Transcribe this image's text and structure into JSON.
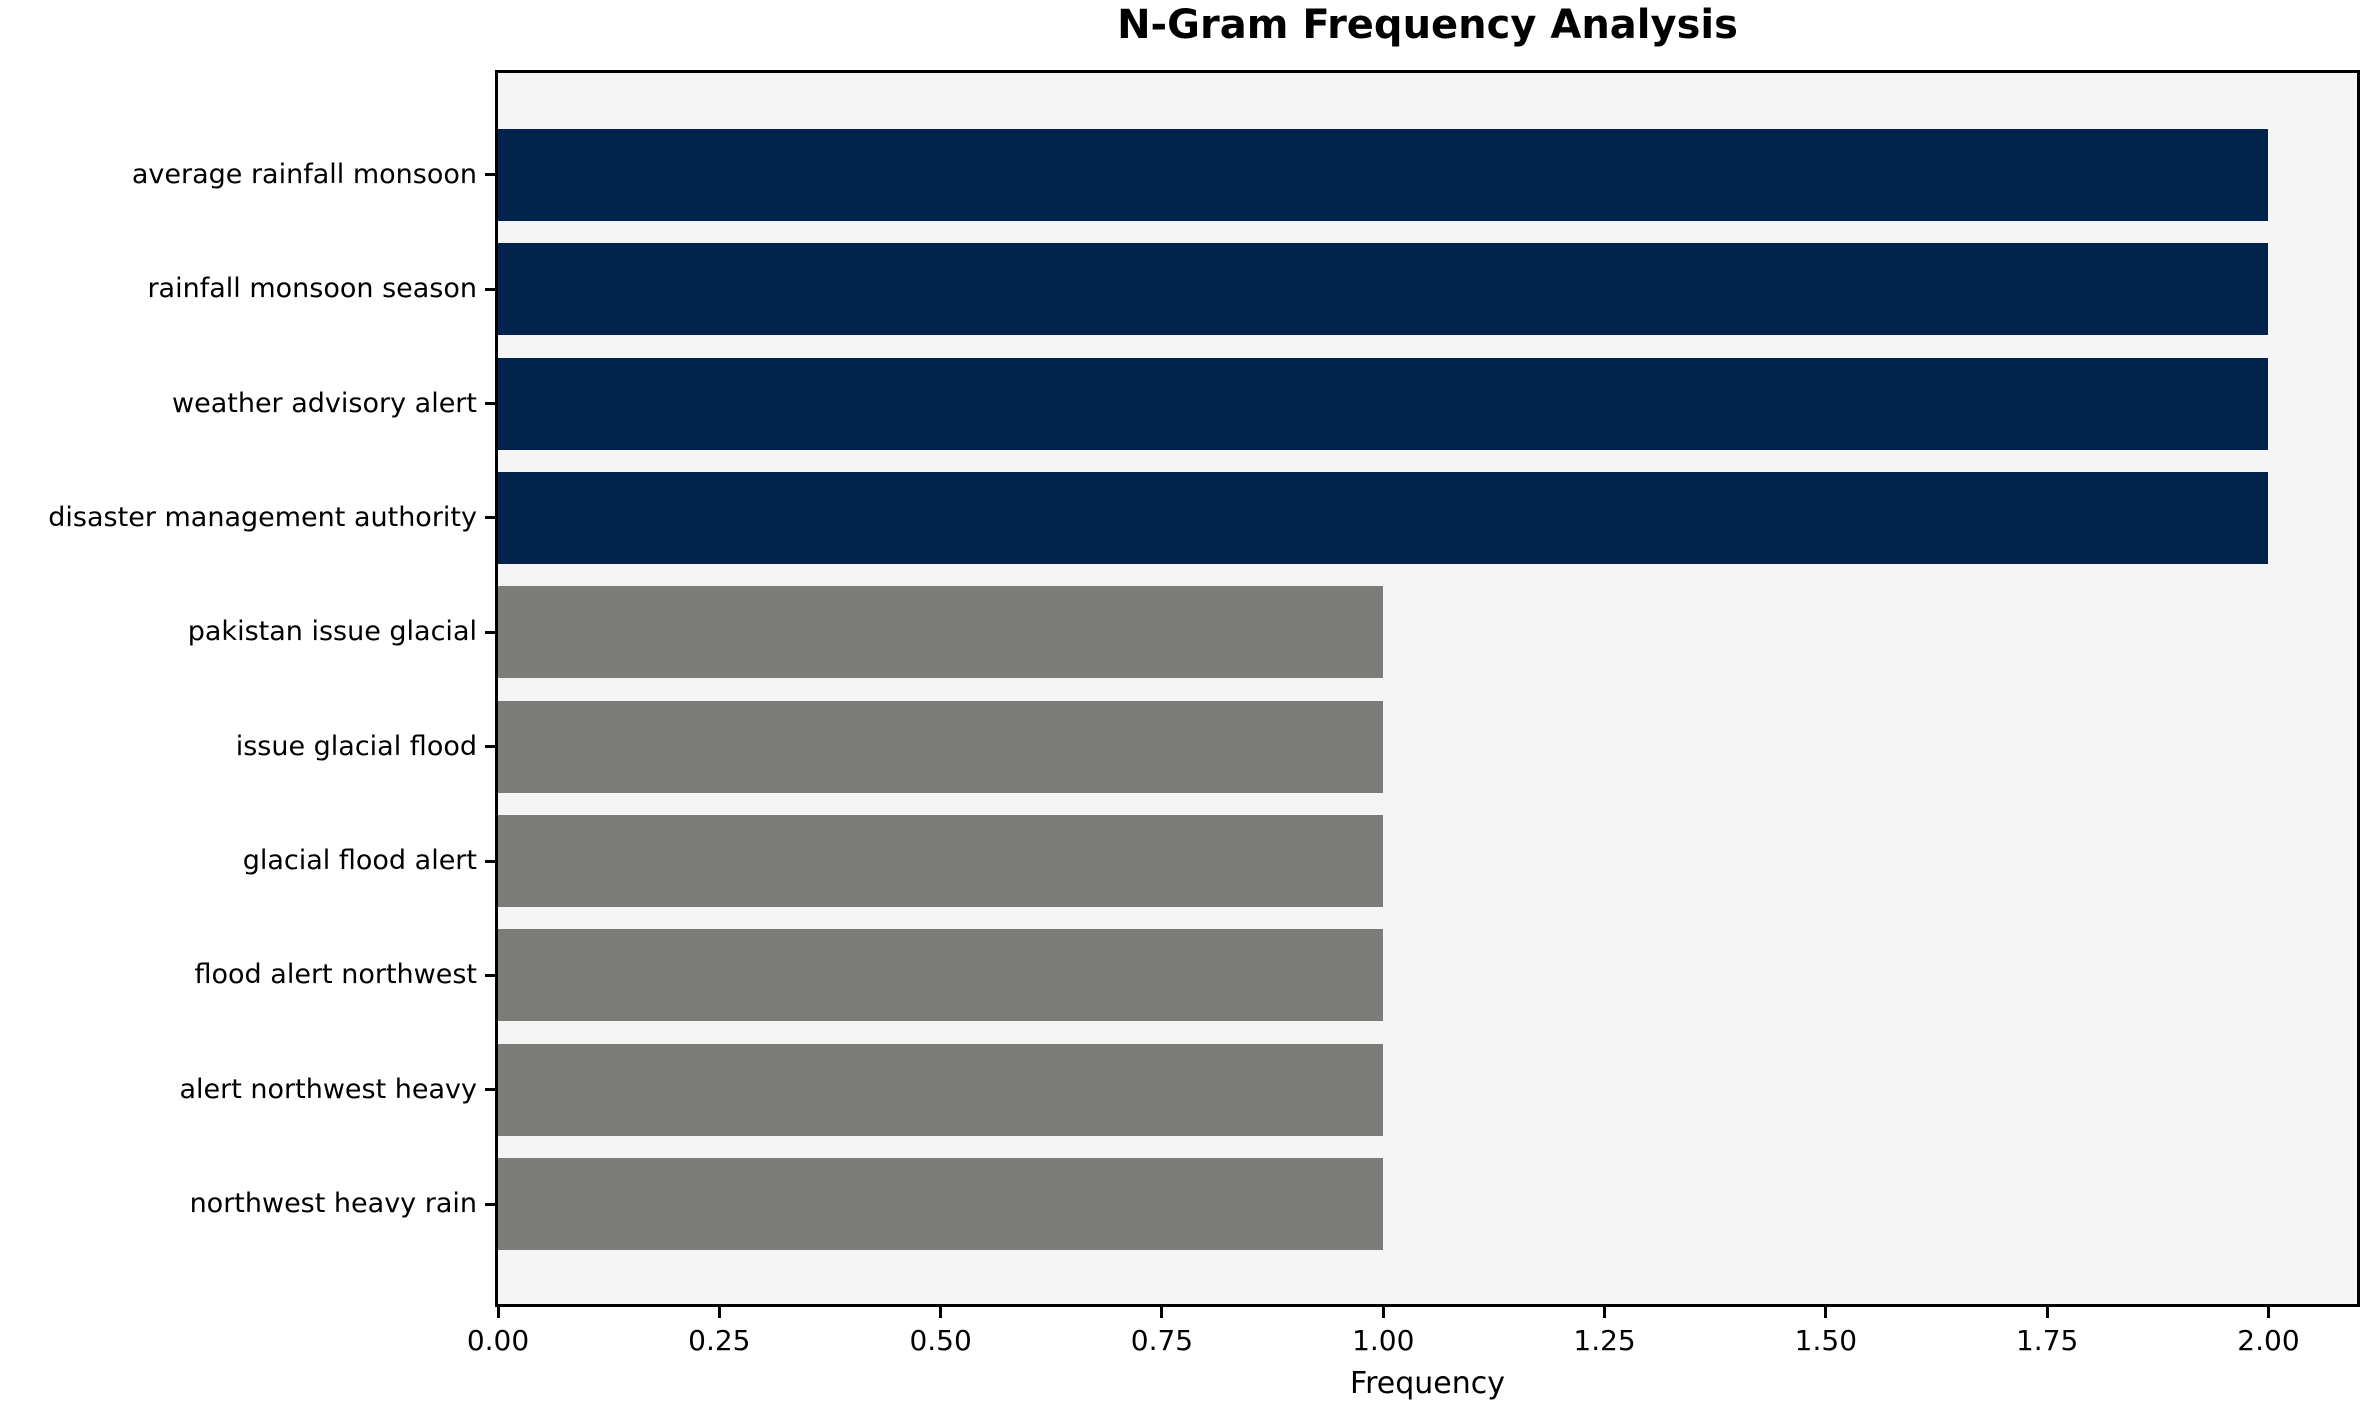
{
  "chart_data": {
    "type": "bar",
    "orientation": "horizontal",
    "title": "N-Gram Frequency Analysis",
    "xlabel": "Frequency",
    "ylabel": "",
    "categories": [
      "average rainfall monsoon",
      "rainfall monsoon season",
      "weather advisory alert",
      "disaster management authority",
      "pakistan issue glacial",
      "issue glacial flood",
      "glacial flood alert",
      "flood alert northwest",
      "alert northwest heavy",
      "northwest heavy rain"
    ],
    "values": [
      2,
      2,
      2,
      2,
      1,
      1,
      1,
      1,
      1,
      1
    ],
    "bar_colors": [
      "#02234c",
      "#02234c",
      "#02234c",
      "#02234c",
      "#7b7b78",
      "#7b7b78",
      "#7b7b78",
      "#7b7b78",
      "#7b7b78",
      "#7b7b78"
    ],
    "xlim": [
      0,
      2.1
    ],
    "x_tick_values": [
      0,
      0.25,
      0.5,
      0.75,
      1.0,
      1.25,
      1.5,
      1.75,
      2.0
    ],
    "x_tick_labels": [
      "0.00",
      "0.25",
      "0.50",
      "0.75",
      "1.00",
      "1.25",
      "1.50",
      "1.75",
      "2.00"
    ],
    "grid": false,
    "legend": null,
    "colors": {
      "highlight_bar": "#02234c",
      "default_bar": "#7b7b78",
      "plot_background": "#f5f5f6",
      "figure_background": "#ffffff",
      "frame": "#000000",
      "text": "#000000"
    }
  }
}
